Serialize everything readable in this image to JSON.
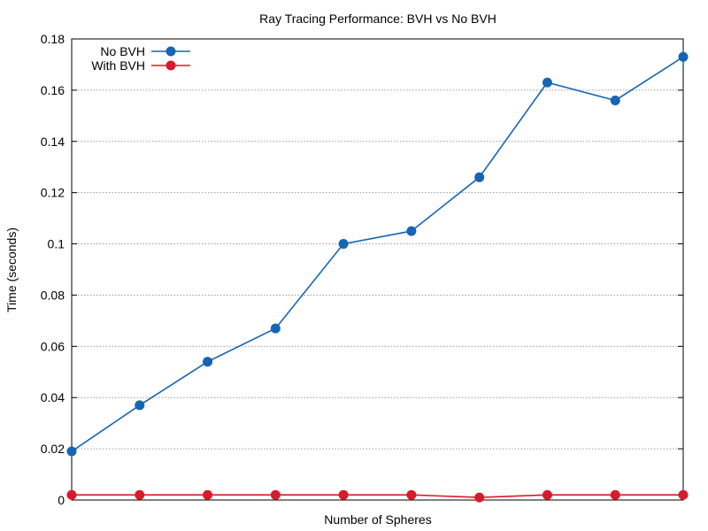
{
  "chart_data": {
    "type": "line",
    "title": "Ray Tracing Performance: BVH vs No BVH",
    "xlabel": "Number of Spheres",
    "ylabel": "Time (seconds)",
    "ylim": [
      0,
      0.18
    ],
    "yticks": [
      0,
      0.02,
      0.04,
      0.06,
      0.08,
      0.1,
      0.12,
      0.14,
      0.16,
      0.18
    ],
    "ytick_labels": [
      "0",
      "0.02",
      "0.04",
      "0.06",
      "0.08",
      "0.1",
      "0.12",
      "0.14",
      "0.16",
      "0.18"
    ],
    "x": [
      1,
      2,
      3,
      4,
      5,
      6,
      7,
      8,
      9,
      10
    ],
    "xlim": [
      1,
      10
    ],
    "grid": true,
    "legend_placement": "top-left",
    "series": [
      {
        "name": "No BVH",
        "color": "#1565b4",
        "values": [
          0.019,
          0.037,
          0.054,
          0.067,
          0.1,
          0.105,
          0.126,
          0.163,
          0.156,
          0.173
        ]
      },
      {
        "name": "With BVH",
        "color": "#d81b2a",
        "values": [
          0.002,
          0.002,
          0.002,
          0.002,
          0.002,
          0.002,
          0.001,
          0.002,
          0.002,
          0.002
        ]
      }
    ]
  }
}
